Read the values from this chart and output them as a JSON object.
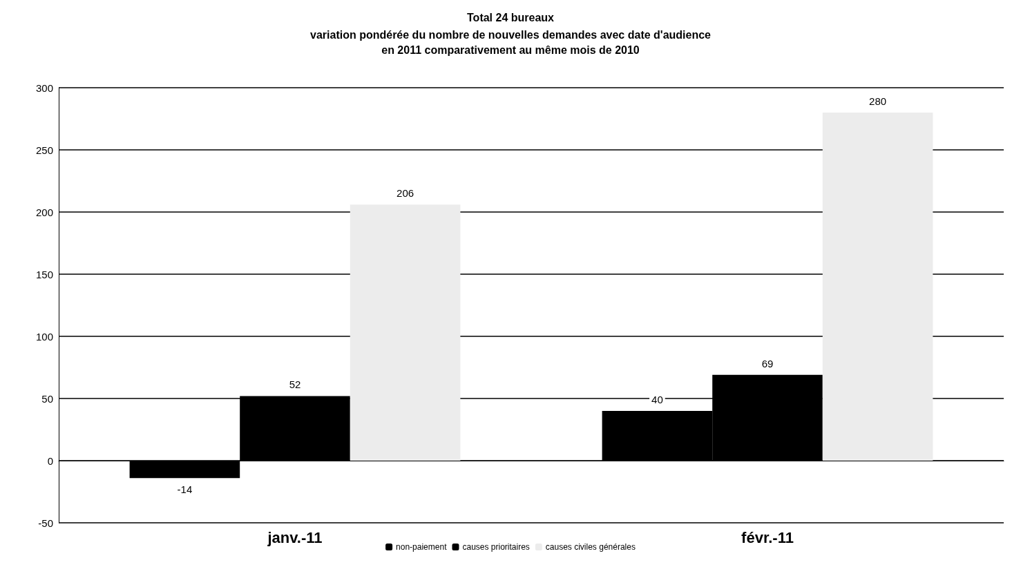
{
  "chart_data": {
    "type": "bar",
    "title": "Total 24 bureaux",
    "subtitle": "variation pondérée du nombre de nouvelles demandes avec date d'audience\nen 2011 comparativement au même mois de 2010",
    "categories": [
      "janv.-11",
      "févr.-11"
    ],
    "series": [
      {
        "name": "non-paiement",
        "color": "#000000",
        "values": [
          -14,
          40
        ]
      },
      {
        "name": "causes prioritaires",
        "color": "#000000",
        "values": [
          52,
          69
        ]
      },
      {
        "name": "causes civiles générales",
        "color": "#ececec",
        "values": [
          206,
          280
        ]
      }
    ],
    "ylim": [
      -50,
      300
    ],
    "yticks": [
      -50,
      0,
      50,
      100,
      150,
      200,
      250,
      300
    ],
    "grid": "y",
    "legend": "bottom",
    "data_labels": true
  }
}
